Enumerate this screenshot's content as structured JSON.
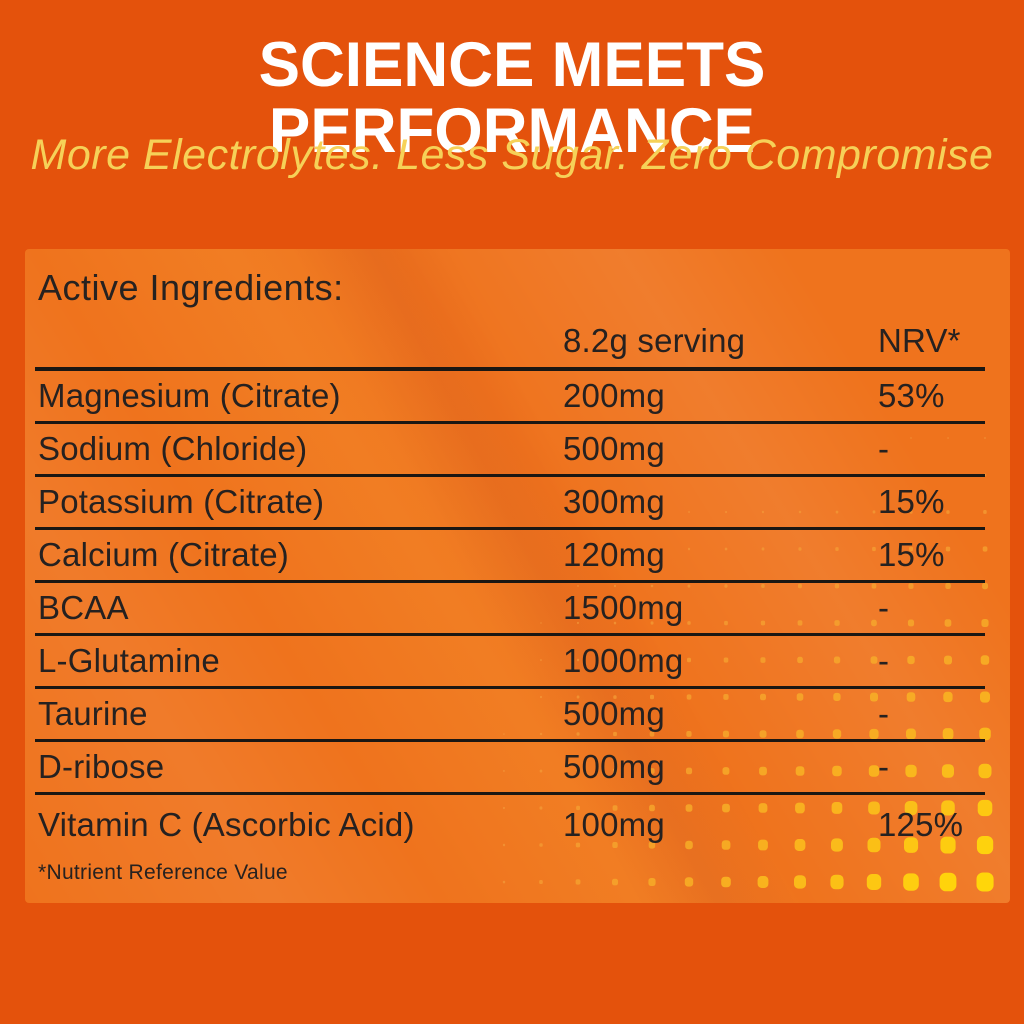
{
  "header": {
    "title": "SCIENCE MEETS PERFORMANCE",
    "subtitle": "More Electrolytes. Less Sugar. Zero Compromise"
  },
  "panel": {
    "heading": "Active Ingredients:",
    "table": {
      "col_ingredient": "",
      "col_serving": "8.2g serving",
      "col_nrv": "NRV*",
      "rows": [
        {
          "name": "Magnesium (Citrate)",
          "amount": "200mg",
          "nrv": "53%"
        },
        {
          "name": "Sodium (Chloride)",
          "amount": "500mg",
          "nrv": "-"
        },
        {
          "name": "Potassium (Citrate)",
          "amount": "300mg",
          "nrv": "15%"
        },
        {
          "name": "Calcium (Citrate)",
          "amount": "120mg",
          "nrv": "15%"
        },
        {
          "name": "BCAA",
          "amount": "1500mg",
          "nrv": "-"
        },
        {
          "name": "L-Glutamine",
          "amount": "1000mg",
          "nrv": "-"
        },
        {
          "name": "Taurine",
          "amount": "500mg",
          "nrv": "-"
        },
        {
          "name": "D-ribose",
          "amount": "500mg",
          "nrv": "-"
        },
        {
          "name": "Vitamin C (Ascorbic Acid)",
          "amount": "100mg",
          "nrv": "125%"
        }
      ]
    },
    "footnote": "*Nutrient Reference Value"
  },
  "colors": {
    "background": "#e4520c",
    "panel": "#ef731d",
    "title_text": "#ffffff",
    "subtitle_text": "#f6d158",
    "table_text": "#262120",
    "rule": "#1b1713",
    "dot_small": "#f2953a",
    "dot_large": "#ffd60a"
  }
}
